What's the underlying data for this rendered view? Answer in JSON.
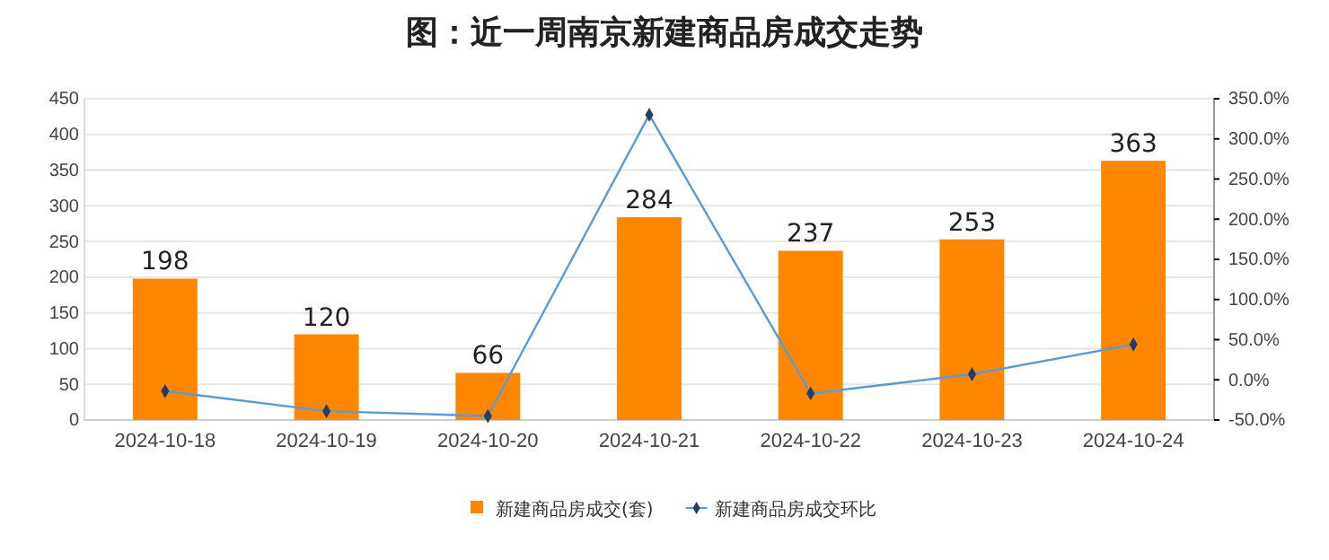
{
  "chart_data": {
    "type": "bar",
    "title": "图：近一周南京新建商品房成交走势",
    "categories": [
      "2024-10-18",
      "2024-10-19",
      "2024-10-20",
      "2024-10-21",
      "2024-10-22",
      "2024-10-23",
      "2024-10-24"
    ],
    "series": [
      {
        "name": "新建商品房成交(套)",
        "color": "#ff8600",
        "values": [
          198,
          120,
          66,
          284,
          237,
          253,
          363
        ],
        "value_labels": [
          "198",
          "120",
          "66",
          "284",
          "237",
          "253",
          "363"
        ]
      },
      {
        "name": "新建商品房成交环比",
        "type": "line",
        "axis": "y2",
        "color": "#5b9bd5",
        "values": [
          -14,
          -39,
          -45,
          330,
          -17,
          7,
          44
        ]
      }
    ],
    "marker": "diamond",
    "ylim": [
      0,
      450
    ],
    "yticks": [
      0,
      50,
      100,
      150,
      200,
      250,
      300,
      350,
      400,
      450
    ],
    "y2lim": [
      -50,
      350
    ],
    "y2ticks": [
      {
        "value": -50,
        "label": "-50.0%"
      },
      {
        "value": 0,
        "label": "0.0%"
      },
      {
        "value": 50,
        "label": "50.0%"
      },
      {
        "value": 100,
        "label": "100.0%"
      },
      {
        "value": 150,
        "label": "150.0%"
      },
      {
        "value": 200,
        "label": "200.0%"
      },
      {
        "value": 250,
        "label": "250.0%"
      },
      {
        "value": 300,
        "label": "300.0%"
      },
      {
        "value": 350,
        "label": "350.0%"
      }
    ],
    "grid": "y",
    "legend": "bottom"
  }
}
